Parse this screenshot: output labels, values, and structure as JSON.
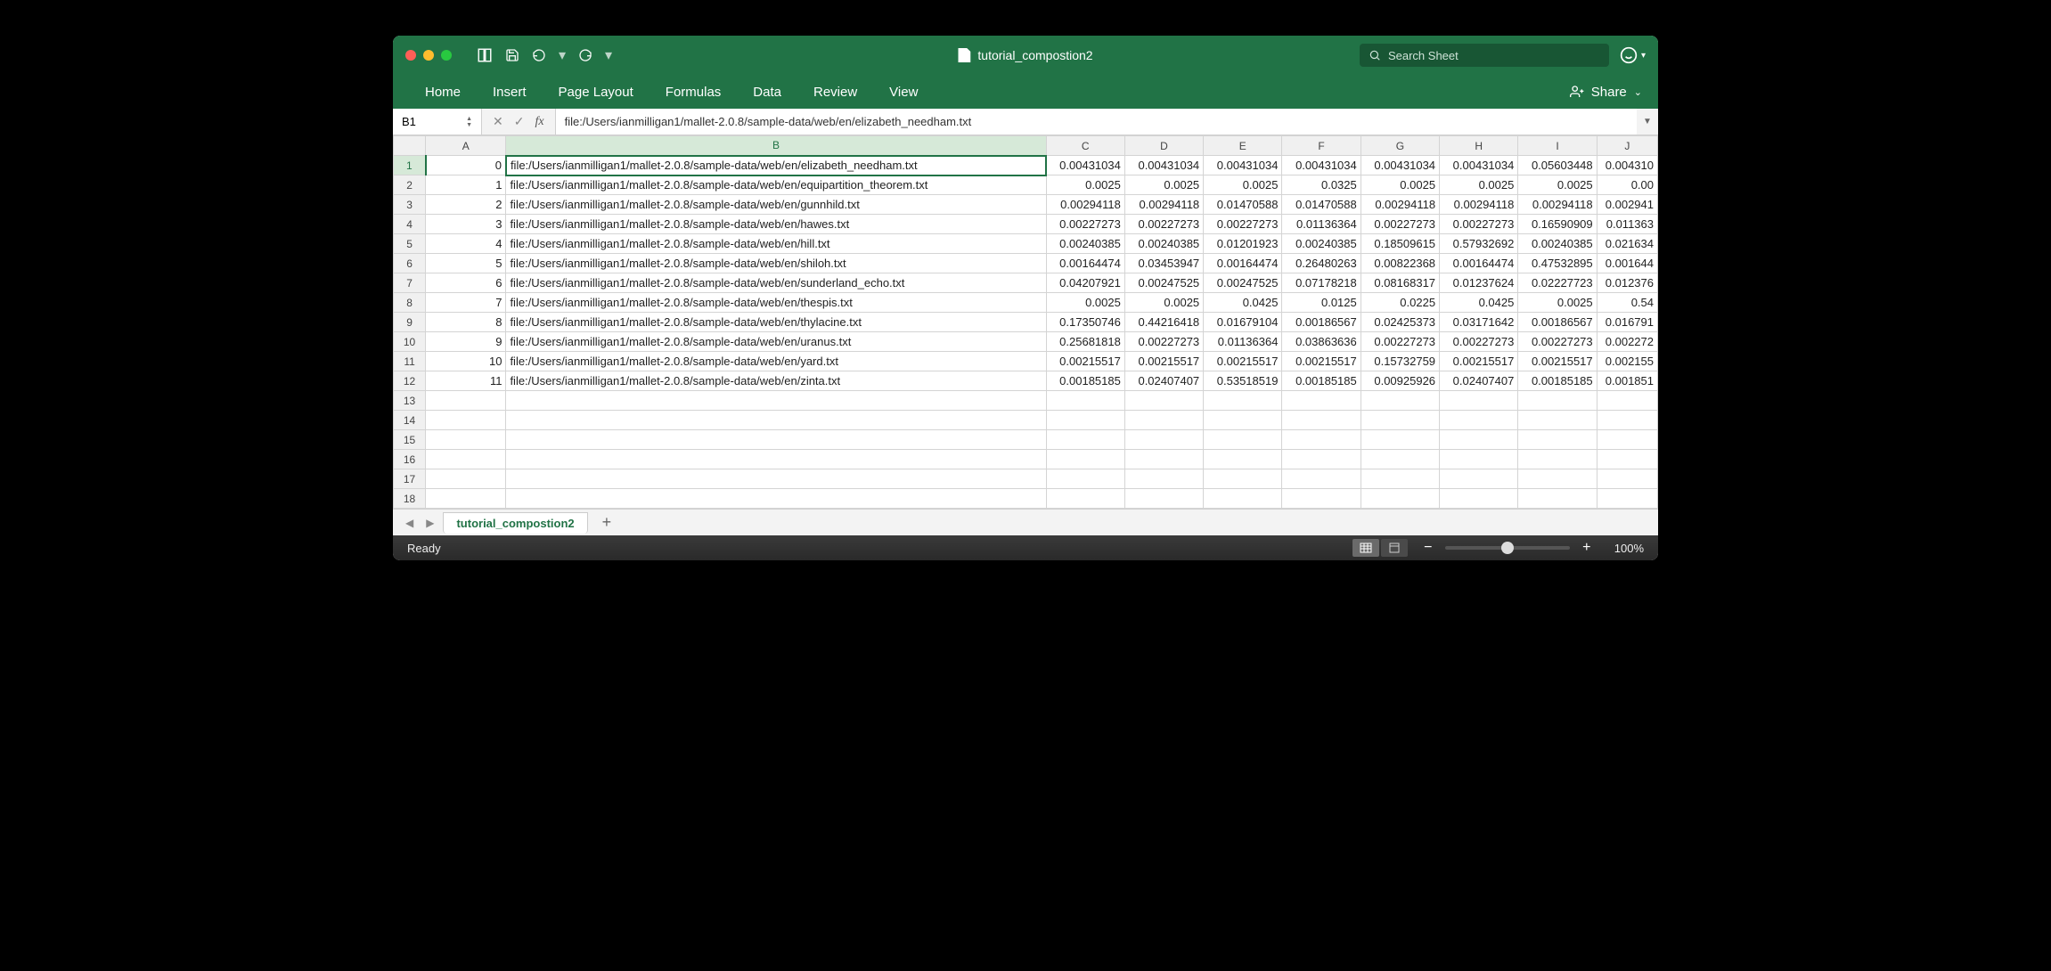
{
  "window": {
    "title": "tutorial_compostion2",
    "search_placeholder": "Search Sheet"
  },
  "ribbon": {
    "tabs": [
      "Home",
      "Insert",
      "Page Layout",
      "Formulas",
      "Data",
      "Review",
      "View"
    ],
    "share_label": "Share"
  },
  "formula_bar": {
    "name_box": "B1",
    "formula": "file:/Users/ianmilligan1/mallet-2.0.8/sample-data/web/en/elizabeth_needham.txt"
  },
  "grid": {
    "columns": [
      "A",
      "B",
      "C",
      "D",
      "E",
      "F",
      "G",
      "H",
      "I",
      "J"
    ],
    "col_widths": {
      "A": "col-A",
      "B": "col-B",
      "C": "col-N",
      "D": "col-N",
      "E": "col-N",
      "F": "col-N",
      "G": "col-N",
      "H": "col-N",
      "I": "col-N",
      "J": "col-J"
    },
    "selected_cell": {
      "row": 1,
      "col": "B"
    },
    "rows": [
      {
        "n": 1,
        "A": "0",
        "B": "file:/Users/ianmilligan1/mallet-2.0.8/sample-data/web/en/elizabeth_needham.txt",
        "C": "0.00431034",
        "D": "0.00431034",
        "E": "0.00431034",
        "F": "0.00431034",
        "G": "0.00431034",
        "H": "0.00431034",
        "I": "0.05603448",
        "J": "0.004310"
      },
      {
        "n": 2,
        "A": "1",
        "B": "file:/Users/ianmilligan1/mallet-2.0.8/sample-data/web/en/equipartition_theorem.txt",
        "C": "0.0025",
        "D": "0.0025",
        "E": "0.0025",
        "F": "0.0325",
        "G": "0.0025",
        "H": "0.0025",
        "I": "0.0025",
        "J": "0.00"
      },
      {
        "n": 3,
        "A": "2",
        "B": "file:/Users/ianmilligan1/mallet-2.0.8/sample-data/web/en/gunnhild.txt",
        "C": "0.00294118",
        "D": "0.00294118",
        "E": "0.01470588",
        "F": "0.01470588",
        "G": "0.00294118",
        "H": "0.00294118",
        "I": "0.00294118",
        "J": "0.002941"
      },
      {
        "n": 4,
        "A": "3",
        "B": "file:/Users/ianmilligan1/mallet-2.0.8/sample-data/web/en/hawes.txt",
        "C": "0.00227273",
        "D": "0.00227273",
        "E": "0.00227273",
        "F": "0.01136364",
        "G": "0.00227273",
        "H": "0.00227273",
        "I": "0.16590909",
        "J": "0.011363"
      },
      {
        "n": 5,
        "A": "4",
        "B": "file:/Users/ianmilligan1/mallet-2.0.8/sample-data/web/en/hill.txt",
        "C": "0.00240385",
        "D": "0.00240385",
        "E": "0.01201923",
        "F": "0.00240385",
        "G": "0.18509615",
        "H": "0.57932692",
        "I": "0.00240385",
        "J": "0.021634"
      },
      {
        "n": 6,
        "A": "5",
        "B": "file:/Users/ianmilligan1/mallet-2.0.8/sample-data/web/en/shiloh.txt",
        "C": "0.00164474",
        "D": "0.03453947",
        "E": "0.00164474",
        "F": "0.26480263",
        "G": "0.00822368",
        "H": "0.00164474",
        "I": "0.47532895",
        "J": "0.001644"
      },
      {
        "n": 7,
        "A": "6",
        "B": "file:/Users/ianmilligan1/mallet-2.0.8/sample-data/web/en/sunderland_echo.txt",
        "C": "0.04207921",
        "D": "0.00247525",
        "E": "0.00247525",
        "F": "0.07178218",
        "G": "0.08168317",
        "H": "0.01237624",
        "I": "0.02227723",
        "J": "0.012376"
      },
      {
        "n": 8,
        "A": "7",
        "B": "file:/Users/ianmilligan1/mallet-2.0.8/sample-data/web/en/thespis.txt",
        "C": "0.0025",
        "D": "0.0025",
        "E": "0.0425",
        "F": "0.0125",
        "G": "0.0225",
        "H": "0.0425",
        "I": "0.0025",
        "J": "0.54"
      },
      {
        "n": 9,
        "A": "8",
        "B": "file:/Users/ianmilligan1/mallet-2.0.8/sample-data/web/en/thylacine.txt",
        "C": "0.17350746",
        "D": "0.44216418",
        "E": "0.01679104",
        "F": "0.00186567",
        "G": "0.02425373",
        "H": "0.03171642",
        "I": "0.00186567",
        "J": "0.016791"
      },
      {
        "n": 10,
        "A": "9",
        "B": "file:/Users/ianmilligan1/mallet-2.0.8/sample-data/web/en/uranus.txt",
        "C": "0.25681818",
        "D": "0.00227273",
        "E": "0.01136364",
        "F": "0.03863636",
        "G": "0.00227273",
        "H": "0.00227273",
        "I": "0.00227273",
        "J": "0.002272"
      },
      {
        "n": 11,
        "A": "10",
        "B": "file:/Users/ianmilligan1/mallet-2.0.8/sample-data/web/en/yard.txt",
        "C": "0.00215517",
        "D": "0.00215517",
        "E": "0.00215517",
        "F": "0.00215517",
        "G": "0.15732759",
        "H": "0.00215517",
        "I": "0.00215517",
        "J": "0.002155"
      },
      {
        "n": 12,
        "A": "11",
        "B": "file:/Users/ianmilligan1/mallet-2.0.8/sample-data/web/en/zinta.txt",
        "C": "0.00185185",
        "D": "0.02407407",
        "E": "0.53518519",
        "F": "0.00185185",
        "G": "0.00925926",
        "H": "0.02407407",
        "I": "0.00185185",
        "J": "0.001851"
      }
    ],
    "empty_rows": [
      13,
      14,
      15,
      16,
      17,
      18
    ]
  },
  "sheet_bar": {
    "active_sheet": "tutorial_compostion2"
  },
  "status_bar": {
    "status": "Ready",
    "zoom": "100%"
  },
  "colors": {
    "excel_green": "#217346",
    "window_bg": "#ffffff",
    "grid_border": "#d4d4d4",
    "header_bg": "#f0f0f0"
  }
}
